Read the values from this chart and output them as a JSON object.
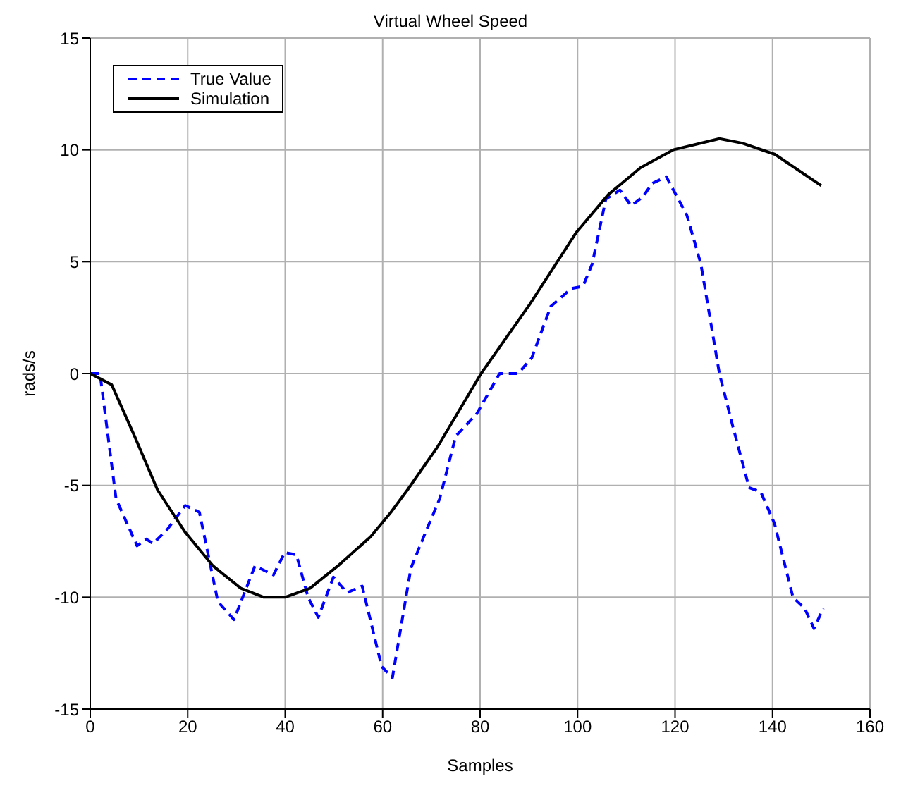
{
  "chart_data": {
    "type": "line",
    "title": "Virtual Wheel Speed",
    "xlabel": "Samples",
    "ylabel": "rads/s",
    "xlim": [
      0,
      160
    ],
    "xticks": [
      0,
      20,
      40,
      60,
      80,
      100,
      120,
      140,
      160
    ],
    "ylim": [
      -15,
      15
    ],
    "yticks": [
      -15,
      -10,
      -5,
      0,
      5,
      10,
      15
    ],
    "grid": true,
    "legend": "top left",
    "marker": "none",
    "series": [
      {
        "name": "True Value",
        "color": "#0000ff",
        "line_style": "dashed",
        "x": [
          0,
          2,
          5.3,
          9.6,
          11.5,
          12.9,
          15.7,
          19.5,
          22.4,
          26.2,
          29.5,
          33.8,
          37.6,
          39.9,
          42.3,
          44.7,
          46.8,
          49.9,
          52.7,
          55.8,
          59.8,
          62.0,
          65.8,
          68.8,
          71.7,
          75.0,
          79.3,
          84.0,
          87.8,
          90.6,
          94.5,
          98.7,
          101.1,
          103.0,
          105.8,
          108.7,
          111.0,
          113.4,
          115.3,
          118.2,
          122.4,
          125.3,
          129.1,
          131.9,
          135.2,
          137.6,
          140.4,
          144.2,
          146.6,
          148.5,
          150.4
        ],
        "values": [
          0,
          0,
          -5.6,
          -7.7,
          -7.4,
          -7.6,
          -7.0,
          -5.9,
          -6.2,
          -10.2,
          -11.0,
          -8.6,
          -9.0,
          -8.0,
          -8.1,
          -10.0,
          -10.9,
          -9.1,
          -9.8,
          -9.5,
          -13.1,
          -13.6,
          -8.7,
          -7.1,
          -5.6,
          -2.8,
          -1.8,
          0.0,
          0.0,
          0.7,
          3.0,
          3.8,
          3.9,
          4.9,
          7.8,
          8.2,
          7.5,
          7.9,
          8.5,
          8.8,
          7.1,
          4.9,
          0.0,
          -2.4,
          -5.1,
          -5.3,
          -6.7,
          -10.0,
          -10.5,
          -11.4,
          -10.5
        ]
      },
      {
        "name": "Simulation",
        "color": "#000000",
        "line_style": "solid",
        "x": [
          0,
          4.4,
          9.1,
          13.8,
          19.5,
          25.2,
          30.9,
          35.6,
          40,
          45.1,
          50.8,
          57.5,
          61.7,
          65.1,
          71.2,
          80.2,
          90.2,
          99.7,
          106.3,
          112.9,
          119.6,
          129.1,
          133.8,
          140.5,
          150
        ],
        "values": [
          0,
          -0.5,
          -2.8,
          -5.2,
          -7.1,
          -8.6,
          -9.6,
          -10.0,
          -10.0,
          -9.6,
          -8.6,
          -7.3,
          -6.2,
          -5.2,
          -3.3,
          0.0,
          3.1,
          6.3,
          8.0,
          9.2,
          10.0,
          10.5,
          10.3,
          9.8,
          8.4
        ]
      }
    ]
  }
}
